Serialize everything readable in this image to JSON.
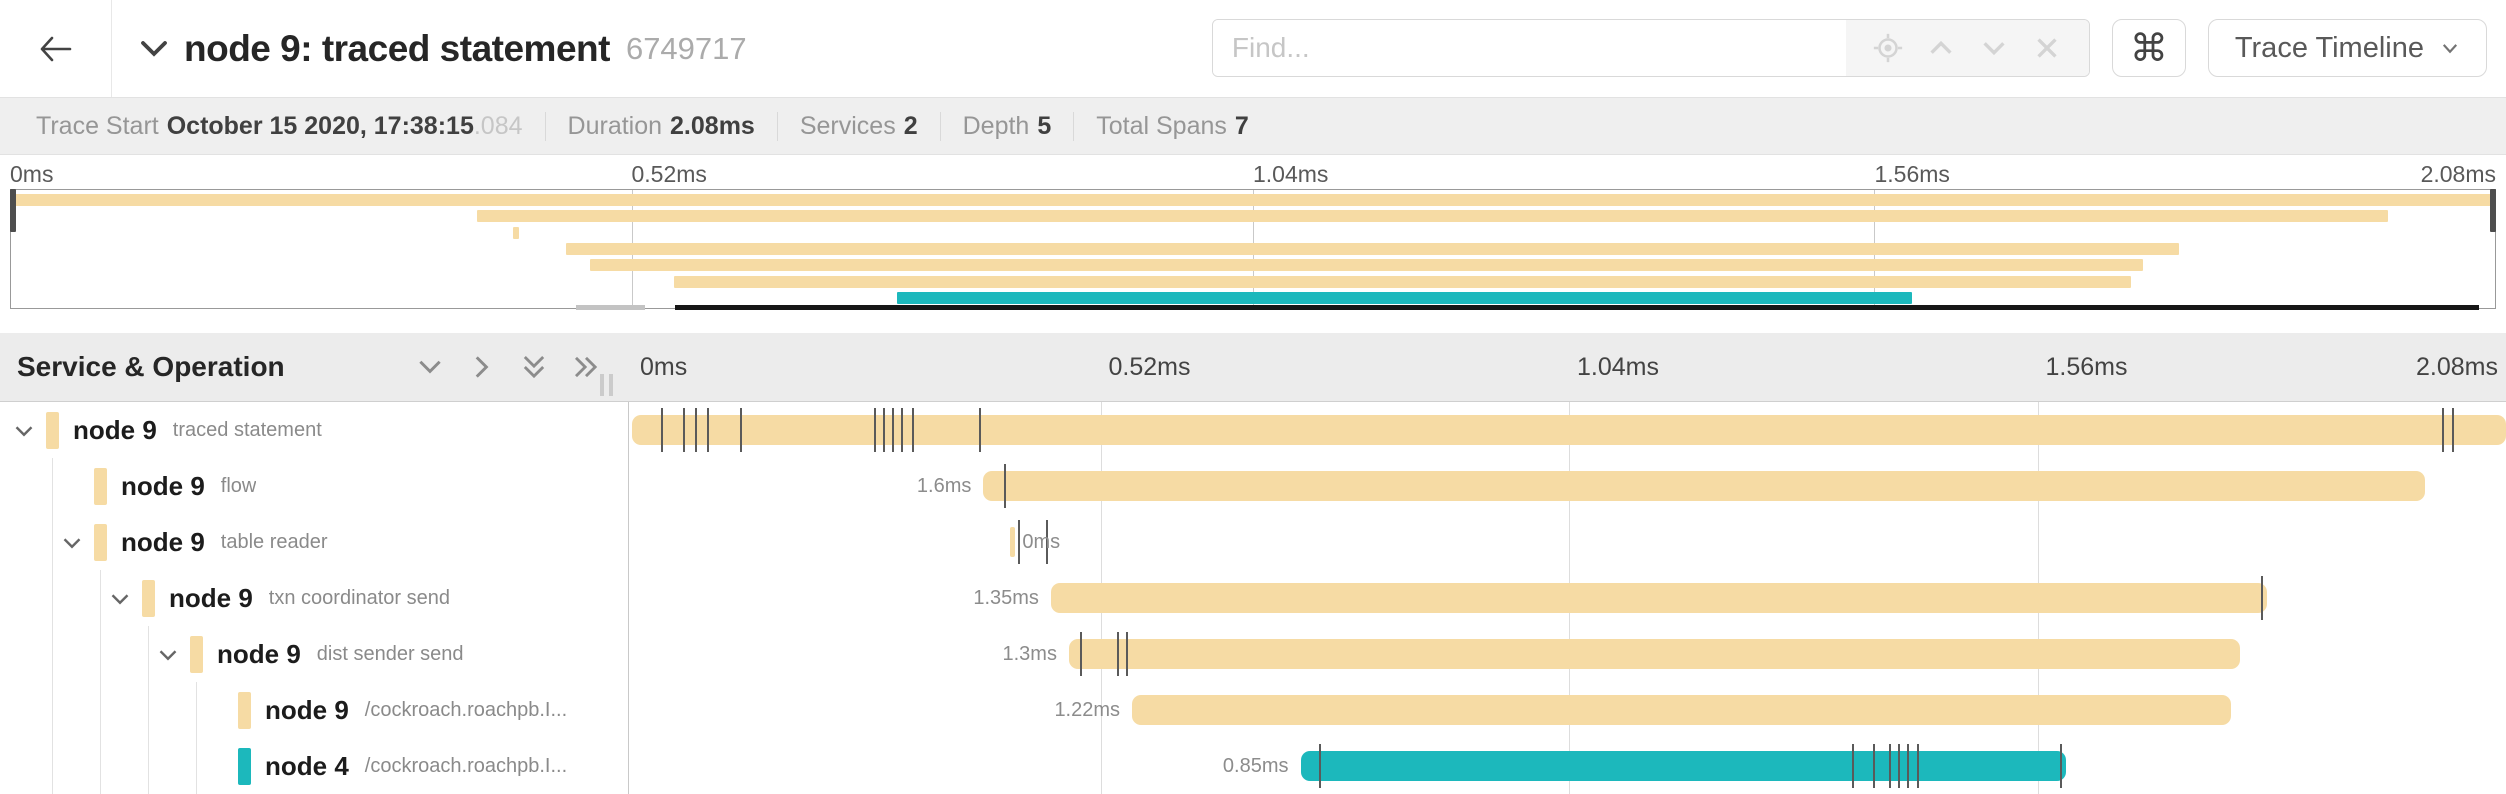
{
  "colors": {
    "tan": "#f6dba4",
    "teal": "#1cb8bc",
    "log_tick": "#5a5a5a"
  },
  "header": {
    "title": "node 9: traced statement",
    "trace_id": "6749717",
    "find_placeholder": "Find...",
    "shortcut_label": "⌘",
    "view_selector_label": "Trace Timeline",
    "icons": {
      "back": "arrow-left-icon",
      "collapse_title": "chevron-down-icon",
      "find_locate": "crosshair-icon",
      "find_prev": "caret-up-icon",
      "find_next": "caret-down-icon",
      "find_clear": "x-icon",
      "view_selector": "caret-down-icon"
    }
  },
  "summary": {
    "items": [
      {
        "label": "Trace Start",
        "value": "October 15 2020, 17:38:15",
        "suffix": ".084"
      },
      {
        "label": "Duration",
        "value": "2.08ms"
      },
      {
        "label": "Services",
        "value": "2"
      },
      {
        "label": "Depth",
        "value": "5"
      },
      {
        "label": "Total Spans",
        "value": "7"
      }
    ]
  },
  "timeline": {
    "total_ms": 2.08,
    "tick_labels": [
      "0ms",
      "0.52ms",
      "1.04ms",
      "1.56ms",
      "2.08ms"
    ]
  },
  "table": {
    "header_label": "Service & Operation",
    "header_icons": [
      "collapse-all-icon",
      "expand-one-icon",
      "collapse-deep-icon",
      "expand-all-icon"
    ]
  },
  "spans": [
    {
      "service": "node 9",
      "operation": "traced statement",
      "level": 0,
      "has_children": true,
      "color": "tan",
      "start_ms": 0,
      "end_ms": 2.08,
      "duration_label": "",
      "log_ticks_ms": [
        0.032,
        0.057,
        0.07,
        0.083,
        0.12,
        0.269,
        0.279,
        0.289,
        0.299,
        0.311,
        0.385,
        2.009,
        2.02
      ]
    },
    {
      "service": "node 9",
      "operation": "flow",
      "level": 1,
      "has_children": false,
      "color": "tan",
      "start_ms": 0.39,
      "end_ms": 1.99,
      "duration_label": "1.6ms",
      "log_ticks_ms": [
        0.413
      ]
    },
    {
      "service": "node 9",
      "operation": "table reader",
      "level": 1,
      "has_children": true,
      "color": "tan",
      "start_ms": 0.42,
      "end_ms": 0.425,
      "duration_label": "0ms",
      "label_after": true,
      "log_ticks_ms": [
        0.428,
        0.46
      ]
    },
    {
      "service": "node 9",
      "operation": "txn coordinator send",
      "level": 2,
      "has_children": true,
      "color": "tan",
      "start_ms": 0.465,
      "end_ms": 1.815,
      "duration_label": "1.35ms",
      "log_ticks_ms": [
        1.808
      ]
    },
    {
      "service": "node 9",
      "operation": "dist sender send",
      "level": 3,
      "has_children": true,
      "color": "tan",
      "start_ms": 0.485,
      "end_ms": 1.785,
      "duration_label": "1.3ms",
      "log_ticks_ms": [
        0.497,
        0.538,
        0.548
      ]
    },
    {
      "service": "node 9",
      "operation": "/cockroach.roachpb.I...",
      "level": 4,
      "has_children": false,
      "color": "tan",
      "start_ms": 0.555,
      "end_ms": 1.775,
      "duration_label": "1.22ms",
      "log_ticks_ms": []
    },
    {
      "service": "node 4",
      "operation": "/cockroach.roachpb.I...",
      "level": 4,
      "has_children": false,
      "color": "teal",
      "start_ms": 0.742,
      "end_ms": 1.592,
      "duration_label": "0.85ms",
      "log_ticks_ms": [
        0.763,
        1.354,
        1.377,
        1.395,
        1.405,
        1.415,
        1.426,
        1.585
      ]
    }
  ]
}
